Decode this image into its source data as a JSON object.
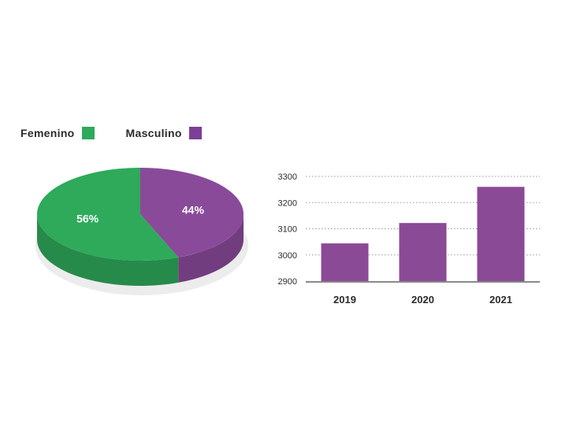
{
  "legend": {
    "items": [
      {
        "label": "Femenino",
        "color": "#2eaa5a"
      },
      {
        "label": "Masculino",
        "color": "#7d3f98"
      }
    ]
  },
  "chart_data": [
    {
      "type": "pie",
      "labels": [
        "Femenino",
        "Masculino"
      ],
      "values": [
        56,
        44
      ],
      "value_labels": [
        "56%",
        "44%"
      ],
      "colors": [
        "#2eaa5a",
        "#8a4a9a"
      ],
      "style": "3d"
    },
    {
      "type": "bar",
      "categories": [
        "2019",
        "2020",
        "2021"
      ],
      "values": [
        3044,
        3122,
        3260
      ],
      "color": "#8a4a96",
      "ylim": [
        2900,
        3300
      ],
      "yticks": [
        2900,
        3000,
        3100,
        3200,
        3300
      ],
      "grid": true
    }
  ]
}
